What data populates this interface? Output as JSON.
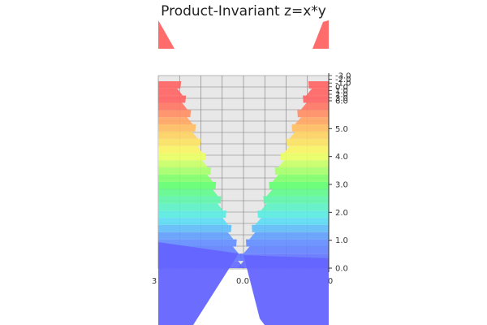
{
  "chart_data": {
    "type": "surface",
    "title": "Product-Invariant z=x*y",
    "xlabel": "",
    "ylabel": "",
    "zlabel": "",
    "x_tick_labels": [
      "3",
      "0.0",
      "0"
    ],
    "z_tick_labels": [
      "6.0",
      "5.0",
      "4.0",
      "3.0",
      "2.0",
      "1.0",
      "0.0"
    ],
    "z_tick_values": [
      6,
      5,
      4,
      3,
      2,
      1,
      0
    ],
    "z_cluster_labels": [
      "-3.0",
      "-2.0",
      "-1.0",
      "0.0",
      "1.0",
      "2.0",
      "3.0"
    ],
    "zlim": [
      0,
      6
    ],
    "grid": true,
    "colormap": "rainbow (blue→cyan→green→yellow→red), semi-transparent",
    "colors": {
      "pane": "#e8e8e8",
      "grid": "#7a7a7a",
      "low": "#6464ff",
      "mid_low": "#5aeaf0",
      "mid": "#64ff6e",
      "mid_high": "#f6ff64",
      "high": "#ff6464"
    }
  }
}
